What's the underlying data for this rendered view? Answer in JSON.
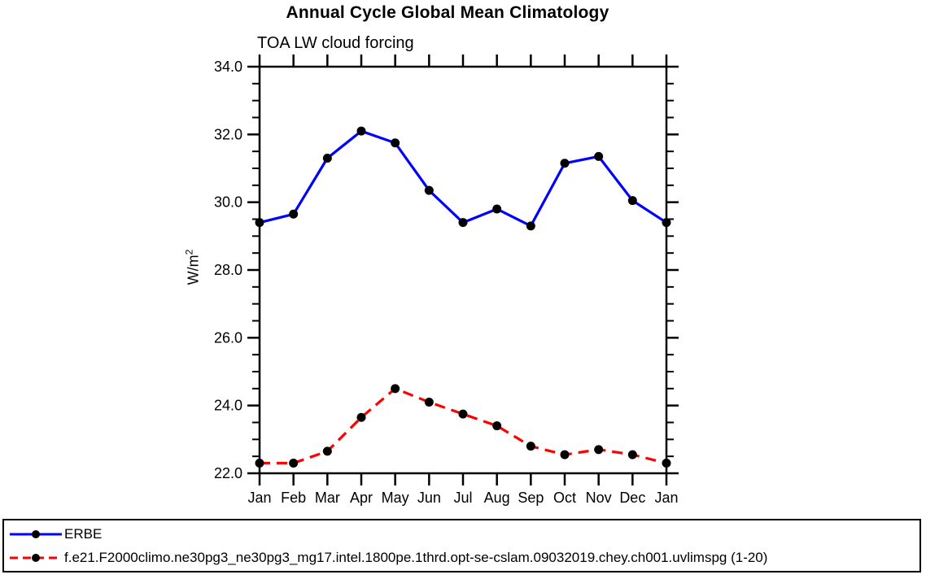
{
  "chart_data": {
    "type": "line",
    "title": "Annual Cycle Global Mean Climatology",
    "subtitle": "TOA LW cloud forcing",
    "ylabel_base": "W/m",
    "ylabel_exp": "2",
    "x_categories": [
      "Jan",
      "Feb",
      "Mar",
      "Apr",
      "May",
      "Jun",
      "Jul",
      "Aug",
      "Sep",
      "Oct",
      "Nov",
      "Dec",
      "Jan"
    ],
    "ylim": [
      22.0,
      34.0
    ],
    "ytick_major_step": 2.0,
    "ytick_minor_step": 0.5,
    "ytick_label_decimals": 1,
    "grid": "off",
    "legend_position": "bottom",
    "frame_color": "#000000",
    "marker_color": "#000000",
    "series": [
      {
        "name": "ERBE",
        "color": "#0000ff",
        "style": "solid",
        "marker": "circle",
        "values": [
          29.4,
          29.65,
          31.3,
          32.1,
          31.75,
          30.35,
          29.4,
          29.8,
          29.3,
          31.15,
          31.35,
          30.05,
          29.4
        ]
      },
      {
        "name": "f.e21.F2000climo.ne30pg3_ne30pg3_mg17.intel.1800pe.1thrd.opt-se-cslam.09032019.chey.ch001.uvlimspg (1-20)",
        "color": "#ff0000",
        "style": "dashed",
        "marker": "circle",
        "values": [
          22.3,
          22.3,
          22.65,
          23.65,
          24.5,
          24.1,
          23.75,
          23.4,
          22.8,
          22.55,
          22.7,
          22.55,
          22.3
        ]
      }
    ]
  }
}
